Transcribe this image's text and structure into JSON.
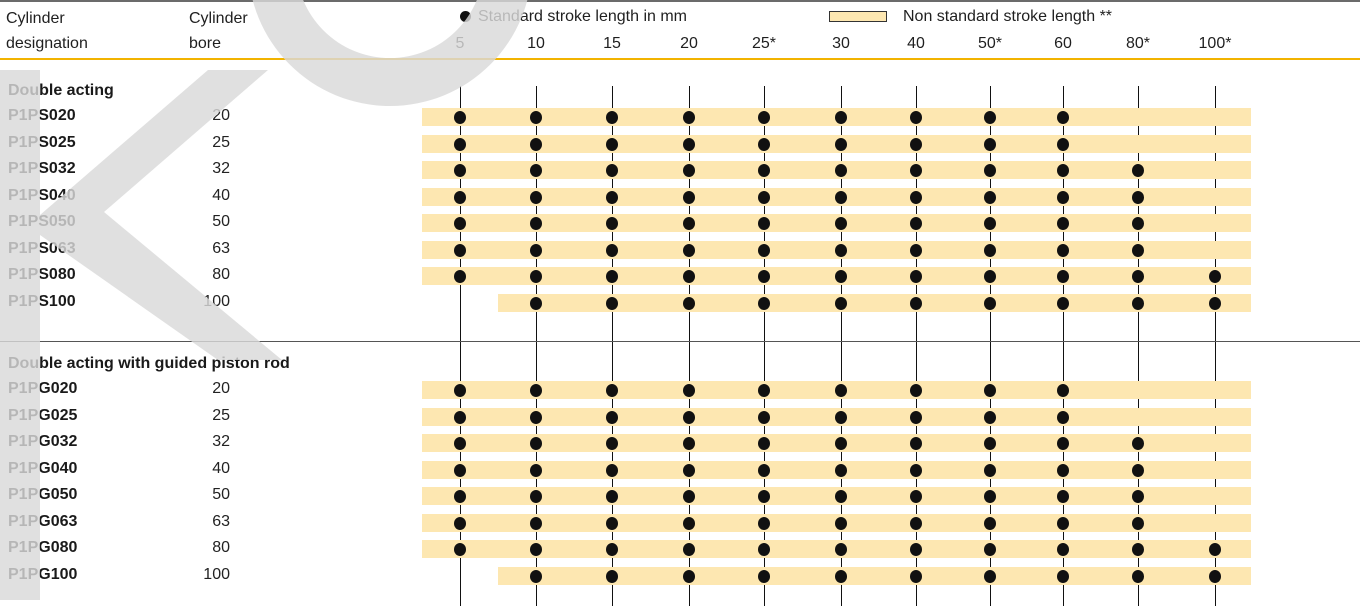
{
  "header": {
    "col1_line1": "Cylinder",
    "col1_line2": "designation",
    "col2_line1": "Cylinder",
    "col2_line2": "bore",
    "legend_standard": "Standard stroke length in mm",
    "legend_nonstandard": "Non standard stroke length **",
    "strokes": [
      "5",
      "10",
      "15",
      "20",
      "25*",
      "30",
      "40",
      "50*",
      "60",
      "80*",
      "100*"
    ]
  },
  "colors": {
    "band": "#fde7b1",
    "header_rule": "#f2b300",
    "dot": "#111111",
    "watermark": "#d9d9d9"
  },
  "sections": [
    {
      "title": "Double acting",
      "rows": [
        {
          "name": "P1PS020",
          "bore": "20",
          "band_from": "5",
          "band_to": "100*",
          "standard": [
            "5",
            "10",
            "15",
            "20",
            "25*",
            "30",
            "40",
            "50*",
            "60"
          ]
        },
        {
          "name": "P1PS025",
          "bore": "25",
          "band_from": "5",
          "band_to": "100*",
          "standard": [
            "5",
            "10",
            "15",
            "20",
            "25*",
            "30",
            "40",
            "50*",
            "60"
          ]
        },
        {
          "name": "P1PS032",
          "bore": "32",
          "band_from": "5",
          "band_to": "100*",
          "standard": [
            "5",
            "10",
            "15",
            "20",
            "25*",
            "30",
            "40",
            "50*",
            "60",
            "80*"
          ]
        },
        {
          "name": "P1PS040",
          "bore": "40",
          "band_from": "5",
          "band_to": "100*",
          "standard": [
            "5",
            "10",
            "15",
            "20",
            "25*",
            "30",
            "40",
            "50*",
            "60",
            "80*"
          ]
        },
        {
          "name": "P1PS050",
          "bore": "50",
          "band_from": "5",
          "band_to": "100*",
          "standard": [
            "5",
            "10",
            "15",
            "20",
            "25*",
            "30",
            "40",
            "50*",
            "60",
            "80*"
          ]
        },
        {
          "name": "P1PS063",
          "bore": "63",
          "band_from": "5",
          "band_to": "100*",
          "standard": [
            "5",
            "10",
            "15",
            "20",
            "25*",
            "30",
            "40",
            "50*",
            "60",
            "80*"
          ]
        },
        {
          "name": "P1PS080",
          "bore": "80",
          "band_from": "5",
          "band_to": "100*",
          "standard": [
            "5",
            "10",
            "15",
            "20",
            "25*",
            "30",
            "40",
            "50*",
            "60",
            "80*",
            "100*"
          ]
        },
        {
          "name": "P1PS100",
          "bore": "100",
          "band_from": "10",
          "band_to": "100*",
          "standard": [
            "10",
            "15",
            "20",
            "25*",
            "30",
            "40",
            "50*",
            "60",
            "80*",
            "100*"
          ]
        }
      ]
    },
    {
      "title": "Double acting with guided piston rod",
      "rows": [
        {
          "name": "P1PG020",
          "bore": "20",
          "band_from": "5",
          "band_to": "100*",
          "standard": [
            "5",
            "10",
            "15",
            "20",
            "25*",
            "30",
            "40",
            "50*",
            "60"
          ]
        },
        {
          "name": "P1PG025",
          "bore": "25",
          "band_from": "5",
          "band_to": "100*",
          "standard": [
            "5",
            "10",
            "15",
            "20",
            "25*",
            "30",
            "40",
            "50*",
            "60"
          ]
        },
        {
          "name": "P1PG032",
          "bore": "32",
          "band_from": "5",
          "band_to": "100*",
          "standard": [
            "5",
            "10",
            "15",
            "20",
            "25*",
            "30",
            "40",
            "50*",
            "60",
            "80*"
          ]
        },
        {
          "name": "P1PG040",
          "bore": "40",
          "band_from": "5",
          "band_to": "100*",
          "standard": [
            "5",
            "10",
            "15",
            "20",
            "25*",
            "30",
            "40",
            "50*",
            "60",
            "80*"
          ]
        },
        {
          "name": "P1PG050",
          "bore": "50",
          "band_from": "5",
          "band_to": "100*",
          "standard": [
            "5",
            "10",
            "15",
            "20",
            "25*",
            "30",
            "40",
            "50*",
            "60",
            "80*"
          ]
        },
        {
          "name": "P1PG063",
          "bore": "63",
          "band_from": "5",
          "band_to": "100*",
          "standard": [
            "5",
            "10",
            "15",
            "20",
            "25*",
            "30",
            "40",
            "50*",
            "60",
            "80*"
          ]
        },
        {
          "name": "P1PG080",
          "bore": "80",
          "band_from": "5",
          "band_to": "100*",
          "standard": [
            "5",
            "10",
            "15",
            "20",
            "25*",
            "30",
            "40",
            "50*",
            "60",
            "80*",
            "100*"
          ]
        },
        {
          "name": "P1PG100",
          "bore": "100",
          "band_from": "10",
          "band_to": "100*",
          "standard": [
            "10",
            "15",
            "20",
            "25*",
            "30",
            "40",
            "50*",
            "60",
            "80*",
            "100*"
          ]
        }
      ]
    }
  ]
}
